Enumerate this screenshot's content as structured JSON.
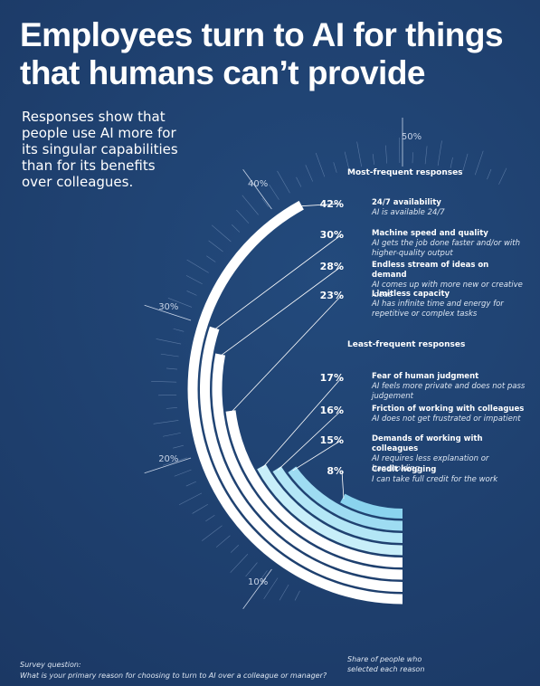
{
  "chart_data": {
    "type": "radial-bar",
    "title": "Employees turn to AI for things that humans can’t provide",
    "subtitle": "Responses show that people use AI more for its singular capabilities than for its benefits over colleagues.",
    "group_labels": [
      "Most-frequent responses",
      "Least-frequent responses"
    ],
    "categories": [
      "24/7 availability",
      "Machine speed and quality",
      "Endless stream of ideas on demand",
      "Limitless capacity",
      "Fear of human judgment",
      "Friction of working with colleagues",
      "Demands of working with colleagues",
      "Credit hogging"
    ],
    "descriptions": [
      "AI is available 24/7",
      "AI gets the job done faster and/or with higher-quality output",
      "AI comes up with more new or creative ideas",
      "AI has infinite time and energy for repetitive or complex tasks",
      "AI feels more private and does not pass judgement",
      "AI does not get frustrated or impatient",
      "AI requires less explanation or handholding",
      "I can take full credit for the work"
    ],
    "values": [
      42,
      30,
      28,
      23,
      17,
      16,
      15,
      8
    ],
    "value_labels": [
      "42%",
      "30%",
      "28%",
      "23%",
      "17%",
      "16%",
      "15%",
      "8%"
    ],
    "colors": [
      "#ffffff",
      "#ffffff",
      "#ffffff",
      "#ffffff",
      "#c8eef9",
      "#b3e6f6",
      "#9edcf2",
      "#8ad3ee"
    ],
    "xlim": [
      0,
      100
    ],
    "xticks": [
      {
        "value": 10,
        "label": "10%"
      },
      {
        "value": 20,
        "label": "20%"
      },
      {
        "value": 30,
        "label": "30%"
      },
      {
        "value": 40,
        "label": "40%"
      },
      {
        "value": 50,
        "label": "50%"
      }
    ],
    "axis_label": "Share of people who selected each reason",
    "footnote_title": "Survey question:",
    "footnote": "What is your primary reason for choosing to turn to AI over a colleague or manager?"
  }
}
